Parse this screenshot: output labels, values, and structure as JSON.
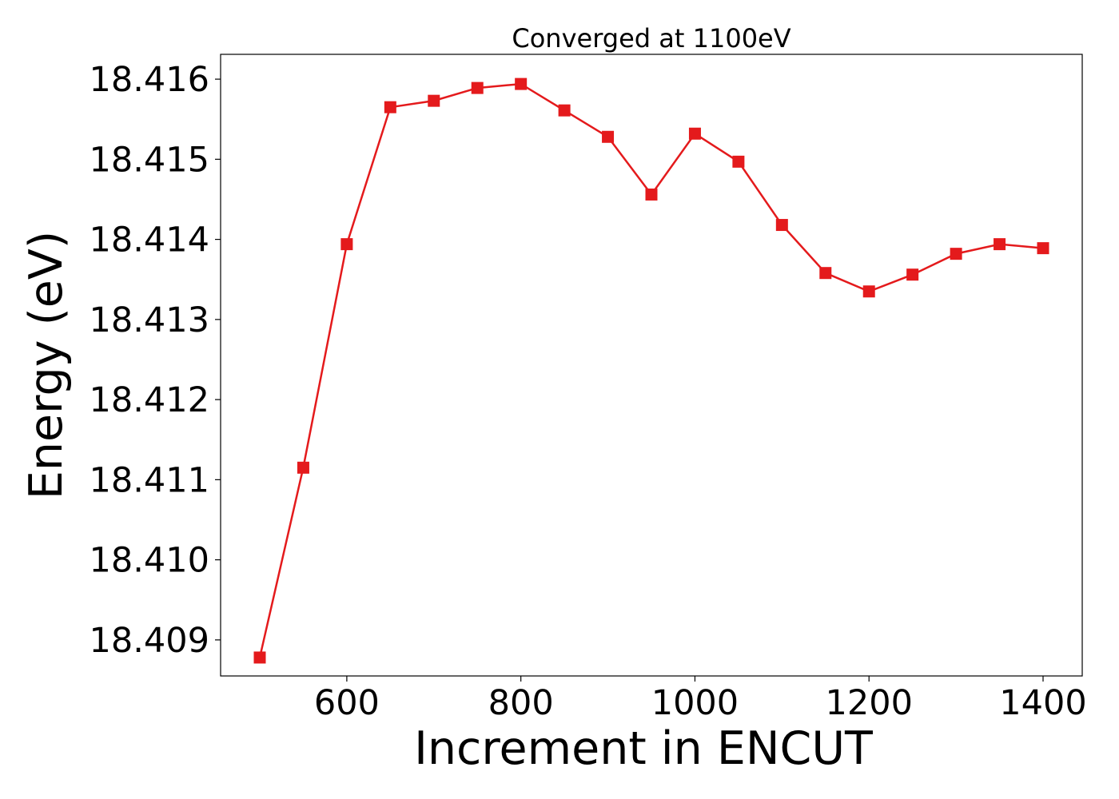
{
  "chart_data": {
    "type": "line",
    "title": "Converged at 1100eV",
    "xlabel": "Increment in ENCUT",
    "ylabel": "Energy (eV)",
    "xlim": [
      455,
      1445
    ],
    "ylim": [
      18.40855,
      18.41631
    ],
    "x_ticks": [
      600,
      800,
      1000,
      1200,
      1400
    ],
    "x_tick_labels": [
      "600",
      "800",
      "1000",
      "1200",
      "1400"
    ],
    "y_ticks": [
      18.409,
      18.41,
      18.411,
      18.412,
      18.413,
      18.414,
      18.415,
      18.416
    ],
    "y_tick_labels": [
      "18.409",
      "18.410",
      "18.411",
      "18.412",
      "18.413",
      "18.414",
      "18.415",
      "18.416"
    ],
    "grid": false,
    "series": [
      {
        "color": "#e41a1c",
        "marker": "square",
        "x": [
          500,
          550,
          600,
          650,
          700,
          750,
          800,
          850,
          900,
          950,
          1000,
          1050,
          1100,
          1150,
          1200,
          1250,
          1300,
          1350,
          1400
        ],
        "y": [
          18.40878,
          18.41115,
          18.41394,
          18.41565,
          18.41573,
          18.41589,
          18.41594,
          18.41561,
          18.41528,
          18.41456,
          18.41532,
          18.41497,
          18.41418,
          18.41358,
          18.41335,
          18.41356,
          18.41382,
          18.41394,
          18.41389
        ]
      }
    ]
  }
}
